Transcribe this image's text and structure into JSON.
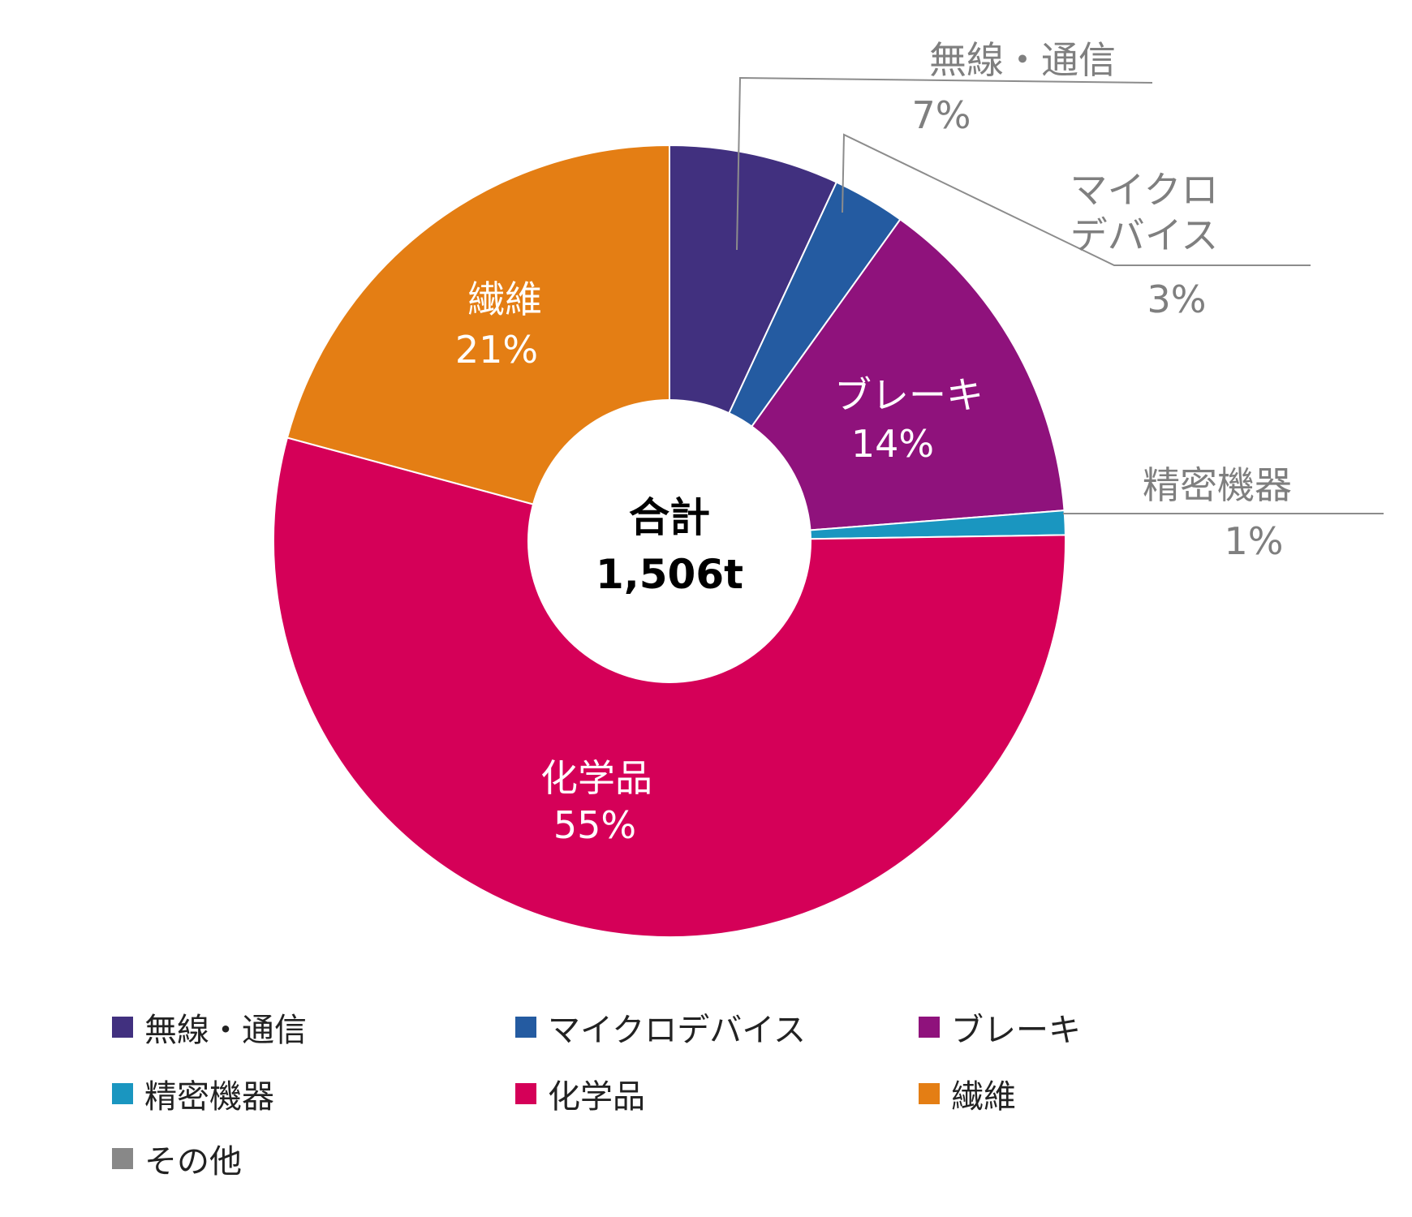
{
  "chart_data": {
    "type": "pie",
    "donut": true,
    "center_title": "合計",
    "center_value": "1,506t",
    "slices": [
      {
        "name": "無線・通信",
        "value": 7,
        "percent_label": "7%",
        "color": "#41307f",
        "label_position": "outside"
      },
      {
        "name": "マイクロデバイス",
        "label_lines": [
          "マイクロ",
          "デバイス"
        ],
        "value": 3,
        "percent_label": "3%",
        "color": "#245ba1",
        "label_position": "outside"
      },
      {
        "name": "ブレーキ",
        "value": 14,
        "percent_label": "14%",
        "color": "#8f127c",
        "label_position": "inside"
      },
      {
        "name": "精密機器",
        "value": 1,
        "percent_label": "1%",
        "color": "#1a96c0",
        "label_position": "outside"
      },
      {
        "name": "化学品",
        "value": 55,
        "percent_label": "55%",
        "color": "#d50058",
        "label_position": "inside"
      },
      {
        "name": "繊維",
        "value": 21,
        "percent_label": "21%",
        "color": "#e47e14",
        "label_position": "inside"
      },
      {
        "name": "その他",
        "value": 0,
        "percent_label": "",
        "color": "#888888",
        "label_position": "none"
      }
    ],
    "legend_position": "bottom"
  }
}
